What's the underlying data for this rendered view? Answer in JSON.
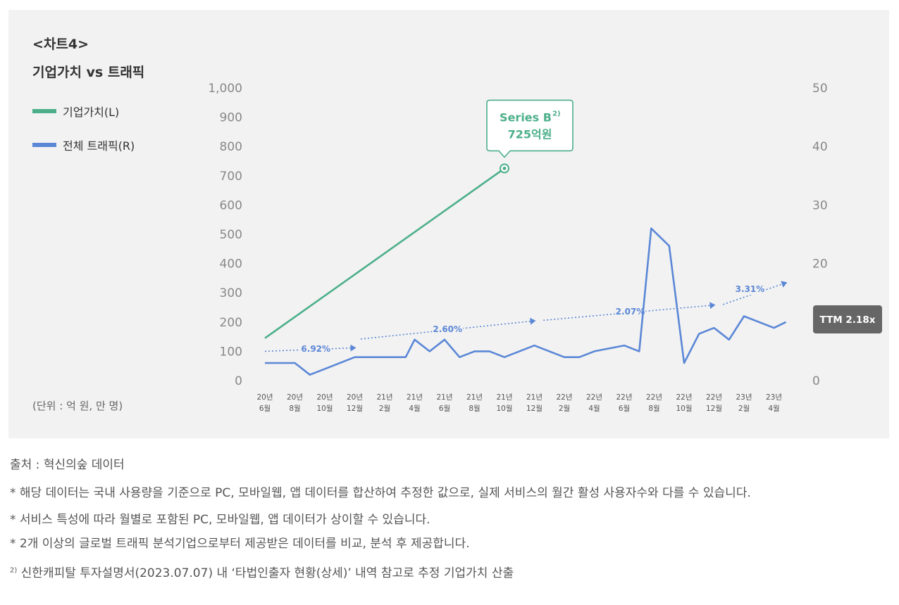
{
  "header": {
    "chart_label": "<차트4>",
    "title": "기업가치 vs 트래픽"
  },
  "legend": {
    "left_series": "기업가치(L)",
    "right_series": "전체 트래픽(R)",
    "left_color": "#4caf8a",
    "right_color": "#5b87d6"
  },
  "unit_note": "(단위 : 억 원, 만 명)",
  "chart_data": {
    "type": "line",
    "title": "기업가치 vs 트래픽",
    "x": [
      "20-06",
      "20-08",
      "20-10",
      "20-12",
      "21-02",
      "21-04",
      "21-06",
      "21-08",
      "21-10",
      "21-12",
      "22-02",
      "22-04",
      "22-06",
      "22-08",
      "22-10",
      "22-12",
      "23-02",
      "23-04"
    ],
    "x_tick_labels": [
      [
        "20년",
        "6월"
      ],
      [
        "20년",
        "8월"
      ],
      [
        "20년",
        "10월"
      ],
      [
        "20년",
        "12월"
      ],
      [
        "21년",
        "2월"
      ],
      [
        "21년",
        "4월"
      ],
      [
        "21년",
        "6월"
      ],
      [
        "21년",
        "8월"
      ],
      [
        "21년",
        "10월"
      ],
      [
        "21년",
        "12월"
      ],
      [
        "22년",
        "2월"
      ],
      [
        "22년",
        "4월"
      ],
      [
        "22년",
        "6월"
      ],
      [
        "22년",
        "8월"
      ],
      [
        "22년",
        "10월"
      ],
      [
        "22년",
        "12월"
      ],
      [
        "23년",
        "2월"
      ],
      [
        "23년",
        "4월"
      ]
    ],
    "left_axis": {
      "ylim": [
        0,
        1000
      ],
      "ticks": [
        "0",
        "100",
        "200",
        "300",
        "400",
        "500",
        "600",
        "700",
        "800",
        "900",
        "1,000"
      ]
    },
    "right_axis": {
      "ylim": [
        0,
        50
      ],
      "ticks": [
        "0",
        "10",
        "20",
        "30",
        "40",
        "50"
      ]
    },
    "series": [
      {
        "name": "기업가치(L)",
        "axis": "left",
        "color": "#4caf8a",
        "points": [
          [
            0,
            145
          ],
          [
            8,
            725
          ]
        ]
      },
      {
        "name": "전체 트래픽(R)",
        "axis": "right",
        "color": "#5b87d6",
        "points": [
          [
            0,
            3
          ],
          [
            1,
            3
          ],
          [
            1.5,
            1
          ],
          [
            2,
            2
          ],
          [
            3,
            4
          ],
          [
            4,
            4
          ],
          [
            4.7,
            4
          ],
          [
            5,
            7
          ],
          [
            5.5,
            5
          ],
          [
            6,
            7
          ],
          [
            6.5,
            4
          ],
          [
            7,
            5
          ],
          [
            7.5,
            5
          ],
          [
            8,
            4
          ],
          [
            9,
            6
          ],
          [
            10,
            4
          ],
          [
            10.5,
            4
          ],
          [
            11,
            5
          ],
          [
            12,
            6
          ],
          [
            12.5,
            5
          ],
          [
            12.9,
            26
          ],
          [
            13.5,
            23
          ],
          [
            14,
            3
          ],
          [
            14.5,
            8
          ],
          [
            15,
            9
          ],
          [
            15.5,
            7
          ],
          [
            16,
            11
          ],
          [
            17,
            9
          ],
          [
            17.4,
            10
          ]
        ]
      }
    ],
    "annotations": {
      "callout": {
        "line1": "Series B",
        "sup": "2)",
        "line2": "725억원",
        "x": 8,
        "y": 725
      },
      "growth_trends": [
        {
          "label": "6.92%",
          "from": [
            0,
            5
          ],
          "to": [
            3,
            5.6
          ],
          "label_at": [
            1.7,
            5.4
          ]
        },
        {
          "label": "2.60%",
          "from": [
            3.2,
            7.1
          ],
          "to": [
            9,
            10.2
          ],
          "label_at": [
            6.1,
            8.8
          ]
        },
        {
          "label": "2.07%",
          "from": [
            9.3,
            10.3
          ],
          "to": [
            15,
            12.9
          ],
          "label_at": [
            12.2,
            11.8
          ]
        },
        {
          "label": "3.31%",
          "from": [
            15.3,
            13.0
          ],
          "to": [
            17.4,
            16.7
          ],
          "label_at": [
            16.2,
            15.6
          ]
        }
      ],
      "ttm_badge": {
        "text": "TTM 2.18x",
        "color": "#666666"
      }
    }
  },
  "footer": {
    "source": "출처 : 혁신의숲 데이터",
    "notes": [
      "* 해당 데이터는 국내 사용량을 기준으로 PC, 모바일웹, 앱 데이터를 합산하여 추정한 값으로, 실제 서비스의 월간 활성 사용자수와 다를 수 있습니다.",
      "* 서비스 특성에 따라 월별로 포함된 PC, 모바일웹, 앱 데이터가 상이할 수 있습니다.",
      "* 2개 이상의 글로벌 트래픽 분석기업으로부터 제공받은 데이터를 비교, 분석 후 제공합니다."
    ],
    "footnote_mark": "2)",
    "footnote_text": "신한캐피탈 투자설명서(2023.07.07) 내 ‘타법인출자 현황(상세)’ 내역 참고로 추정 기업가치 산출"
  }
}
